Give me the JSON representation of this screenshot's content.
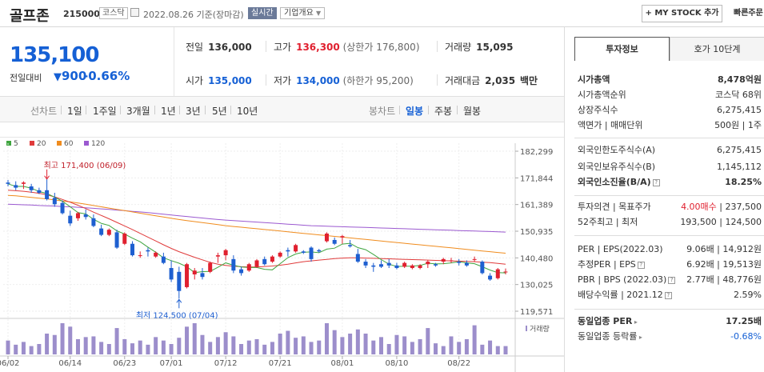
{
  "header": {
    "name": "골프존",
    "code": "215000",
    "market": "코스닥",
    "date": "2022.08.26 기준(장마감)",
    "realtime": "실시간",
    "company_info": "기업개요",
    "mystock": "MY STOCK 추가",
    "fast": "빠른주문"
  },
  "price": {
    "current": "135,100",
    "change_label": "전일대비",
    "change_arrow": "▼",
    "change": "900",
    "change_pct": "-0.66%"
  },
  "stats": {
    "prev_label": "전일",
    "prev": "136,000",
    "high_label": "고가",
    "high": "136,300",
    "upper": "(상한가 176,800)",
    "vol_label": "거래량",
    "vol": "15,095",
    "open_label": "시가",
    "open": "135,000",
    "low_label": "저가",
    "low": "134,000",
    "lower": "(하한가 95,200)",
    "amt_label": "거래대금",
    "amt": "2,035",
    "amt_unit": "백만"
  },
  "tabs": {
    "line_label": "선차트",
    "periods": [
      "1일",
      "1주일",
      "3개월",
      "1년",
      "3년",
      "5년",
      "10년"
    ],
    "candle_label": "봉차트",
    "candles": [
      "일봉",
      "주봉",
      "월봉"
    ]
  },
  "chart_data": {
    "type": "candlestick",
    "legend": [
      {
        "name": "5",
        "color": "#3fa53f"
      },
      {
        "name": "20",
        "color": "#e03b3b"
      },
      {
        "name": "60",
        "color": "#f08c1e"
      },
      {
        "name": "120",
        "color": "#9b59d0"
      }
    ],
    "y_ticks": [
      "182,299",
      "171,844",
      "161,389",
      "150,935",
      "140,480",
      "130,025",
      "119,571"
    ],
    "y_range": [
      119571,
      182299
    ],
    "x_ticks": [
      {
        "label": "06/02",
        "i": 0
      },
      {
        "label": "06/14",
        "i": 8
      },
      {
        "label": "06/23",
        "i": 15
      },
      {
        "label": "07/01",
        "i": 21
      },
      {
        "label": "07/12",
        "i": 28
      },
      {
        "label": "07/21",
        "i": 35
      },
      {
        "label": "08/01",
        "i": 43
      },
      {
        "label": "08/10",
        "i": 50
      },
      {
        "label": "08/22",
        "i": 58
      }
    ],
    "max_note": "최고 171,400 (06/09)",
    "min_note": "최저 124,500 (07/04)",
    "max_index": 5,
    "min_index": 22,
    "volume_label": "거래량",
    "candles": [
      [
        170000,
        171000,
        168500,
        169500
      ],
      [
        169000,
        170500,
        167000,
        168000
      ],
      [
        169500,
        170500,
        167500,
        170000
      ],
      [
        168500,
        169500,
        166000,
        167000
      ],
      [
        167000,
        168000,
        165500,
        166000
      ],
      [
        167000,
        171400,
        163000,
        163500
      ],
      [
        164000,
        166000,
        160500,
        161500
      ],
      [
        162000,
        163000,
        157500,
        158000
      ],
      [
        157000,
        159000,
        153000,
        154000
      ],
      [
        156000,
        158500,
        155000,
        158000
      ],
      [
        157500,
        159500,
        155500,
        156500
      ],
      [
        156000,
        157500,
        152500,
        153000
      ],
      [
        152000,
        153500,
        149000,
        149500
      ],
      [
        149500,
        152000,
        149000,
        151500
      ],
      [
        150500,
        151500,
        144000,
        144500
      ],
      [
        146000,
        150500,
        145500,
        150000
      ],
      [
        146000,
        147000,
        141000,
        141500
      ],
      [
        141500,
        143000,
        140500,
        141500
      ],
      [
        143500,
        144500,
        141000,
        143000
      ],
      [
        141000,
        143000,
        140500,
        142500
      ],
      [
        141000,
        142500,
        138000,
        138500
      ],
      [
        136500,
        139500,
        131000,
        132000
      ],
      [
        135000,
        137000,
        124500,
        127500
      ],
      [
        129000,
        138500,
        128500,
        138000
      ],
      [
        134000,
        136500,
        132000,
        135500
      ],
      [
        134500,
        136500,
        132000,
        133000
      ],
      [
        135000,
        139000,
        134500,
        138500
      ],
      [
        141000,
        142500,
        138500,
        141500
      ],
      [
        141500,
        144000,
        139500,
        143500
      ],
      [
        140000,
        141500,
        134500,
        135500
      ],
      [
        136000,
        137000,
        133500,
        134500
      ],
      [
        135500,
        138500,
        135000,
        138000
      ],
      [
        137000,
        140000,
        136500,
        139500
      ],
      [
        140000,
        141000,
        137500,
        138000
      ],
      [
        139000,
        141500,
        138500,
        141000
      ],
      [
        141000,
        143000,
        140500,
        142500
      ],
      [
        143500,
        144500,
        141000,
        143000
      ],
      [
        143000,
        146000,
        142500,
        145500
      ],
      [
        143000,
        143500,
        142000,
        142500
      ],
      [
        144500,
        145000,
        139000,
        140000
      ],
      [
        143500,
        144000,
        142500,
        143000
      ],
      [
        147000,
        150500,
        146500,
        150000
      ],
      [
        147500,
        148500,
        145500,
        146000
      ],
      [
        148500,
        149500,
        146000,
        149000
      ],
      [
        145500,
        147500,
        144500,
        145000
      ],
      [
        142000,
        144000,
        138500,
        139000
      ],
      [
        139000,
        140000,
        136500,
        137500
      ],
      [
        137500,
        138500,
        135000,
        137000
      ],
      [
        138000,
        139500,
        136500,
        137000
      ],
      [
        138500,
        140000,
        136500,
        137500
      ],
      [
        137500,
        138500,
        136000,
        136500
      ],
      [
        137000,
        139000,
        136500,
        138500
      ],
      [
        136500,
        138000,
        136000,
        137500
      ],
      [
        136500,
        138000,
        136000,
        137500
      ],
      [
        138000,
        139500,
        136500,
        139000
      ],
      [
        138000,
        138500,
        137000,
        137500
      ],
      [
        139000,
        140500,
        138000,
        140000
      ],
      [
        139500,
        140500,
        138500,
        139500
      ],
      [
        139000,
        140000,
        137500,
        138500
      ],
      [
        138500,
        139500,
        137000,
        137500
      ],
      [
        140000,
        141000,
        139000,
        140000
      ],
      [
        139000,
        139500,
        134000,
        134500
      ],
      [
        133500,
        134500,
        131500,
        132000
      ],
      [
        132500,
        136500,
        132000,
        136000
      ],
      [
        135000,
        136300,
        134000,
        135100
      ]
    ],
    "ma5": [
      169500,
      168500,
      168500,
      167800,
      166500,
      165700,
      164300,
      162700,
      160500,
      158200,
      157700,
      155600,
      154000,
      153200,
      151100,
      149800,
      148200,
      146800,
      144700,
      142700,
      140500,
      139400,
      138400,
      137000,
      134700,
      135100,
      135200,
      136800,
      138500,
      137600,
      136900,
      136700,
      136700,
      136000,
      135800,
      138200,
      140600,
      142000,
      142700,
      142800,
      142500,
      143900,
      144300,
      145900,
      146200,
      144500,
      143700,
      141800,
      139800,
      138000,
      137100,
      137200,
      137200,
      137500,
      138400,
      138100,
      138200,
      138500,
      139000,
      138500,
      138200,
      137000,
      135700,
      134700,
      134600
    ],
    "ma20": [
      167000,
      166800,
      166600,
      166200,
      165800,
      165200,
      164400,
      163400,
      162300,
      161100,
      159800,
      158400,
      157100,
      155800,
      154400,
      153000,
      151600,
      150100,
      148600,
      147100,
      145600,
      144200,
      142900,
      141800,
      140700,
      139700,
      138700,
      138000,
      137500,
      137200,
      137000,
      136900,
      136900,
      137100,
      137300,
      137600,
      138000,
      138500,
      139000,
      139300,
      139600,
      139900,
      140200,
      140400,
      140500,
      140500,
      140400,
      140300,
      140200,
      140100,
      140000,
      139900,
      139800,
      139700,
      139600,
      139500,
      139400,
      139300,
      139200,
      139100,
      139000,
      138800,
      138600,
      138300,
      138000
    ],
    "ma60": [
      165000,
      164800,
      164500,
      164200,
      163900,
      163600,
      163200,
      162800,
      162400,
      162000,
      161500,
      161000,
      160500,
      160000,
      159500,
      159000,
      158500,
      158000,
      157500,
      157000,
      156500,
      156000,
      155500,
      155100,
      154700,
      154300,
      153900,
      153500,
      153100,
      152800,
      152500,
      152200,
      151900,
      151600,
      151300,
      151000,
      150700,
      150400,
      150100,
      149800,
      149500,
      149200,
      148900,
      148600,
      148300,
      148000,
      147700,
      147400,
      147100,
      146800,
      146500,
      146200,
      145900,
      145600,
      145300,
      145000,
      144700,
      144400,
      144100,
      143800,
      143500,
      143200,
      142900,
      142600,
      142300
    ],
    "ma120": [
      161500,
      161400,
      161300,
      161200,
      161000,
      160900,
      160800,
      160600,
      160500,
      160300,
      160100,
      159900,
      159700,
      159500,
      159200,
      159000,
      158700,
      158500,
      158200,
      157900,
      157600,
      157300,
      157000,
      156700,
      156400,
      156100,
      155800,
      155500,
      155300,
      155100,
      154900,
      154700,
      154500,
      154300,
      154100,
      153900,
      153700,
      153500,
      153300,
      153100,
      153000,
      152900,
      152800,
      152700,
      152600,
      152500,
      152400,
      152300,
      152200,
      152100,
      152000,
      151900,
      151800,
      151700,
      151600,
      151500,
      151400,
      151300,
      151200,
      151100,
      151000,
      150900,
      150800,
      150700,
      150600
    ],
    "volume": [
      20,
      14,
      18,
      12,
      15,
      30,
      28,
      45,
      40,
      22,
      25,
      26,
      18,
      15,
      38,
      22,
      16,
      20,
      14,
      25,
      20,
      15,
      24,
      40,
      45,
      28,
      18,
      25,
      32,
      26,
      15,
      20,
      22,
      14,
      18,
      30,
      34,
      24,
      26,
      18,
      20,
      45,
      35,
      25,
      30,
      36,
      30,
      20,
      25,
      15,
      28,
      26,
      18,
      22,
      38,
      16,
      12,
      26,
      18,
      22,
      42,
      14,
      20,
      12,
      12
    ]
  },
  "right": {
    "tab1": "투자정보",
    "tab2": "호가 10단계",
    "r1k": "시가총액",
    "r1v": "8,478억원",
    "r2k": "시가총액순위",
    "r2v": "코스닥 68위",
    "r3k": "상장주식수",
    "r3v": "6,275,415",
    "r4k": "액면가 | 매매단위",
    "r4v": "500원 | 1주",
    "r5k": "외국인한도주식수(A)",
    "r5v": "6,275,415",
    "r6k": "외국인보유주식수(B)",
    "r6v": "1,145,112",
    "r7k": "외국인소진율(B/A)",
    "r7v": "18.25%",
    "r8k": "투자의견 | 목표주가",
    "r8a": "4.00매수",
    "r8b": "237,500",
    "r9k": "52주최고 | 최저",
    "r9v": "193,500 | 124,500",
    "r10k": "PER | EPS(2022.03)",
    "r10v": "9.06배 | 14,912원",
    "r11k": "추정PER | EPS",
    "r11v": "6.92배 | 19,513원",
    "r12k": "PBR | BPS (2022.03)",
    "r12v": "2.77배 | 48,776원",
    "r13k": "배당수익률 | 2021.12",
    "r13v": "2.59%",
    "r14k": "동일업종 PER",
    "r14v": "17.25배",
    "r15k": "동일업종 등락률",
    "r15v": "-0.68%"
  }
}
